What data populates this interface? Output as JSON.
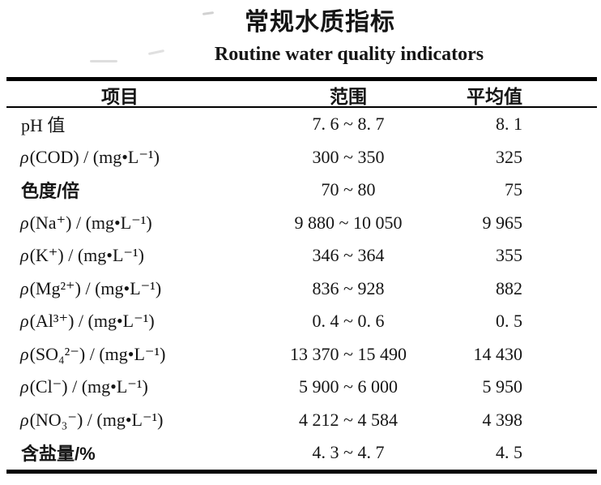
{
  "page": {
    "title_cn": "常规水质指标",
    "title_en": "Routine water quality indicators"
  },
  "table": {
    "columns": [
      {
        "label": "项目"
      },
      {
        "label": "范围"
      },
      {
        "label": "平均值"
      }
    ],
    "rows": [
      {
        "symbol": "",
        "item": "pH 值",
        "range": "7. 6 ~ 8. 7",
        "average": "8. 1"
      },
      {
        "symbol": "ρ",
        "item": "(COD) / (mg•L⁻¹)",
        "range": "300 ~ 350",
        "average": "325"
      },
      {
        "symbol": "",
        "item": "色度/倍",
        "range": "70 ~ 80",
        "average": "75"
      },
      {
        "symbol": "ρ",
        "item": "(Na⁺) / (mg•L⁻¹)",
        "range": "9 880 ~ 10 050",
        "average": "9 965"
      },
      {
        "symbol": "ρ",
        "item": "(K⁺) / (mg•L⁻¹)",
        "range": "346 ~ 364",
        "average": "355"
      },
      {
        "symbol": "ρ",
        "item": "(Mg²⁺) / (mg•L⁻¹)",
        "range": "836 ~ 928",
        "average": "882"
      },
      {
        "symbol": "ρ",
        "item": "(Al³⁺) / (mg•L⁻¹)",
        "range": "0. 4 ~ 0. 6",
        "average": "0. 5"
      },
      {
        "symbol": "ρ",
        "item": "(SO₄²⁻) / (mg•L⁻¹)",
        "range": "13 370 ~ 15 490",
        "average": "14 430"
      },
      {
        "symbol": "ρ",
        "item": "(Cl⁻) / (mg•L⁻¹)",
        "range": "5 900 ~ 6 000",
        "average": "5 950"
      },
      {
        "symbol": "ρ",
        "item": "(NO₃⁻) / (mg•L⁻¹)",
        "range": "4 212 ~ 4 584",
        "average": "4 398"
      },
      {
        "symbol": "",
        "item": "含盐量/%",
        "range": "4. 3 ~ 4. 7",
        "average": "4. 5"
      }
    ]
  },
  "colors": {
    "text": "#151515",
    "rule": "#000000",
    "background": "#ffffff"
  }
}
